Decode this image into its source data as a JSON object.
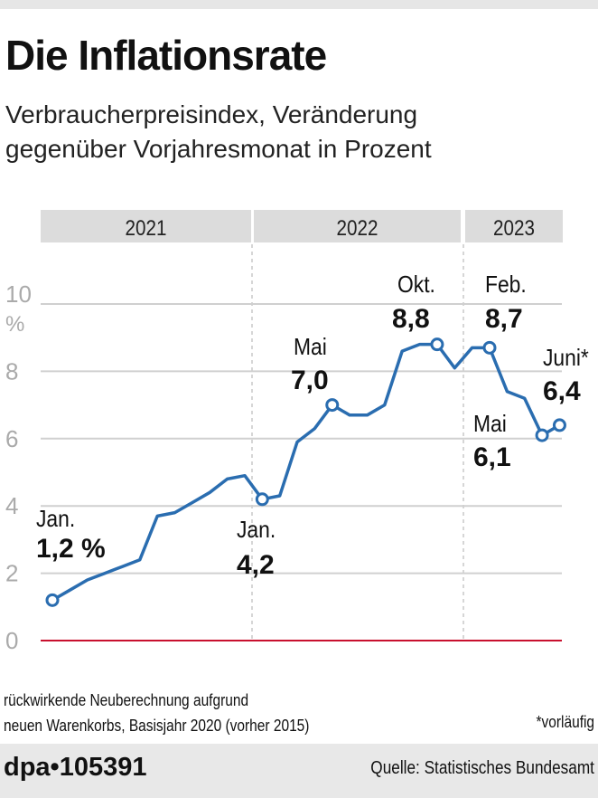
{
  "title": "Die Inflationsrate",
  "subtitle_lines": [
    "Verbraucherpreisindex, Veränderung",
    "gegenüber Vorjahresmonat in Prozent"
  ],
  "chart_data": {
    "type": "line",
    "title": "Die Inflationsrate",
    "ylabel": "%",
    "ylim": [
      0,
      10
    ],
    "yticks": [
      "0",
      "2",
      "4",
      "6",
      "8",
      "10"
    ],
    "unit_label": "%",
    "year_bands": [
      "2021",
      "2022",
      "2023"
    ],
    "grid": true,
    "x": [
      "2021-01",
      "2021-02",
      "2021-03",
      "2021-04",
      "2021-05",
      "2021-06",
      "2021-07",
      "2021-08",
      "2021-09",
      "2021-10",
      "2021-11",
      "2021-12",
      "2022-01",
      "2022-02",
      "2022-03",
      "2022-04",
      "2022-05",
      "2022-06",
      "2022-07",
      "2022-08",
      "2022-09",
      "2022-10",
      "2022-11",
      "2022-12",
      "2023-01",
      "2023-02",
      "2023-03",
      "2023-04",
      "2023-05",
      "2023-06"
    ],
    "values": [
      1.2,
      1.5,
      1.8,
      2.0,
      2.2,
      2.4,
      3.7,
      3.8,
      4.1,
      4.4,
      4.8,
      4.9,
      4.2,
      4.3,
      5.9,
      6.3,
      7.0,
      6.7,
      6.7,
      7.0,
      8.6,
      8.8,
      8.8,
      8.1,
      8.7,
      8.7,
      7.4,
      7.2,
      6.1,
      6.4
    ],
    "line_color": "#2a6db0",
    "zero_line_color": "#c8102e",
    "annotations": [
      {
        "index": 0,
        "month": "Jan.",
        "value": "1,2 %"
      },
      {
        "index": 12,
        "month": "Jan.",
        "value": "4,2"
      },
      {
        "index": 16,
        "month": "Mai",
        "value": "7,0"
      },
      {
        "index": 22,
        "month": "Okt.",
        "value": "8,8"
      },
      {
        "index": 25,
        "month": "Feb.",
        "value": "8,7"
      },
      {
        "index": 28,
        "month": "Mai",
        "value": "6,1"
      },
      {
        "index": 29,
        "month": "Juni*",
        "value": "6,4"
      }
    ]
  },
  "notes": [
    "rückwirkende Neuberechnung aufgrund",
    "neuen Warenkorbs, Basisjahr 2020 (vorher 2015)"
  ],
  "preliminary_note": "*vorläufig",
  "footer": {
    "id": "dpa•105391",
    "source": "Quelle: Statistisches Bundesamt"
  }
}
